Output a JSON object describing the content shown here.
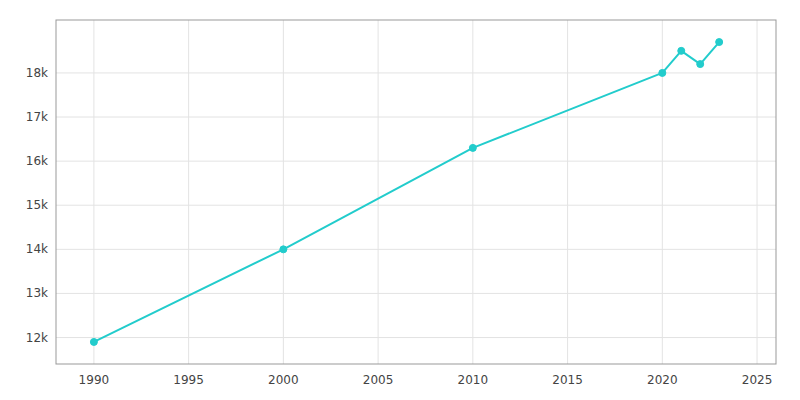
{
  "chart_data": {
    "type": "line",
    "x": [
      1990,
      2000,
      2010,
      2020,
      2021,
      2022,
      2023
    ],
    "values": [
      11900,
      14000,
      16300,
      18000,
      18500,
      18200,
      18700
    ],
    "color": "#22CCCC",
    "marker": "circle",
    "xlim": [
      1988,
      2026
    ],
    "ylim": [
      11400,
      19200
    ],
    "xticks": [
      1990,
      1995,
      2000,
      2005,
      2010,
      2015,
      2020,
      2025
    ],
    "yticks": [
      {
        "value": 12000,
        "label": "12k"
      },
      {
        "value": 13000,
        "label": "13k"
      },
      {
        "value": 14000,
        "label": "14k"
      },
      {
        "value": 15000,
        "label": "15k"
      },
      {
        "value": 16000,
        "label": "16k"
      },
      {
        "value": 17000,
        "label": "17k"
      },
      {
        "value": 18000,
        "label": "18k"
      }
    ],
    "grid": true
  }
}
